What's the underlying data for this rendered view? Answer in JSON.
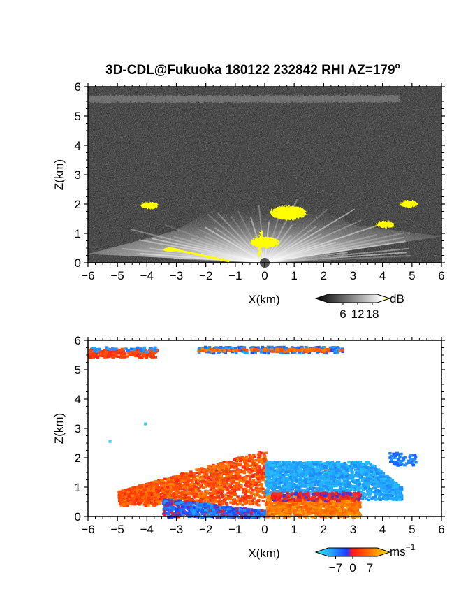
{
  "figure": {
    "title": "3D-CDL@Fukuoka 180122 232842 RHI AZ=179°",
    "title_main": "3D-CDL@Fukuoka 180122 232842 RHI AZ=179",
    "title_sup": "o"
  },
  "colors": {
    "snr_background": "#1a1a1a",
    "snr_highlight": "#ffff00",
    "velocity_negative": "#1a3cff",
    "velocity_zero": "#ff3300",
    "velocity_positive": "#ffcc00",
    "velocity_light": "#33ccff"
  },
  "chart_data": [
    {
      "type": "heatmap",
      "name": "signal-to-noise",
      "xlabel": "X(km)",
      "ylabel": "Z(km)",
      "xlim": [
        -6,
        6
      ],
      "ylim": [
        0,
        6
      ],
      "xticks": [
        "−6",
        "−5",
        "−4",
        "−3",
        "−2",
        "−1",
        "0",
        "1",
        "2",
        "3",
        "4",
        "5",
        "6"
      ],
      "yticks": [
        "0",
        "1",
        "2",
        "3",
        "4",
        "5",
        "6"
      ],
      "colorbar": {
        "ticks": [
          "6",
          "12",
          "18"
        ],
        "unit": "dB",
        "range": [
          0,
          20
        ]
      },
      "features": [
        {
          "label": "cone",
          "apex_x": 0,
          "apex_z": 0,
          "extent_x": [
            -6,
            6
          ],
          "max_z": 2.0
        },
        {
          "label": "layer",
          "x": [
            -6,
            6
          ],
          "z": 5.6
        },
        {
          "label": "patch",
          "x": 0.8,
          "z": 1.7
        },
        {
          "label": "patch",
          "x": 0.0,
          "z": 0.7
        },
        {
          "label": "patch",
          "x": 4.9,
          "z": 2.0
        },
        {
          "label": "patch",
          "x": 4.1,
          "z": 1.3
        },
        {
          "label": "patch",
          "x": -3.9,
          "z": 1.95
        }
      ]
    },
    {
      "type": "heatmap",
      "name": "radial-velocity",
      "xlabel": "X(km)",
      "ylabel": "Z(km)",
      "xlim": [
        -6,
        6
      ],
      "ylim": [
        0,
        6
      ],
      "xticks": [
        "−6",
        "−5",
        "−4",
        "−3",
        "−2",
        "−1",
        "0",
        "1",
        "2",
        "3",
        "4",
        "5",
        "6"
      ],
      "yticks": [
        "0",
        "1",
        "2",
        "3",
        "4",
        "5",
        "6"
      ],
      "colorbar": {
        "ticks": [
          "−7",
          "0",
          "7"
        ],
        "unit_main": "ms",
        "unit_sup": "−1",
        "range": [
          -10,
          10
        ]
      },
      "features": [
        {
          "label": "upper-layer-left",
          "x": [
            -6,
            -3.7
          ],
          "z": 5.6,
          "value": 2
        },
        {
          "label": "upper-layer-right",
          "x": [
            -2.3,
            2.6
          ],
          "z": 5.7,
          "value": -4
        },
        {
          "label": "main-echo-left",
          "x": [
            -5.0,
            0
          ],
          "z": [
            0,
            2.3
          ],
          "value": 3
        },
        {
          "label": "main-echo-right",
          "x": [
            0,
            4.6
          ],
          "z": [
            0,
            1.9
          ],
          "value": -6
        },
        {
          "label": "near-surface-left",
          "x": [
            -3.5,
            0
          ],
          "z": [
            0,
            0.6
          ],
          "value": -3
        },
        {
          "label": "near-surface-right",
          "x": [
            0,
            3.2
          ],
          "z": [
            0,
            0.7
          ],
          "value": 5
        },
        {
          "label": "cloud-right",
          "x": 4.7,
          "z": 2.0,
          "value": -4
        },
        {
          "label": "speck",
          "x": -5.3,
          "z": 2.6,
          "value": -1
        },
        {
          "label": "speck",
          "x": -4.1,
          "z": 3.2,
          "value": -1
        }
      ]
    }
  ]
}
